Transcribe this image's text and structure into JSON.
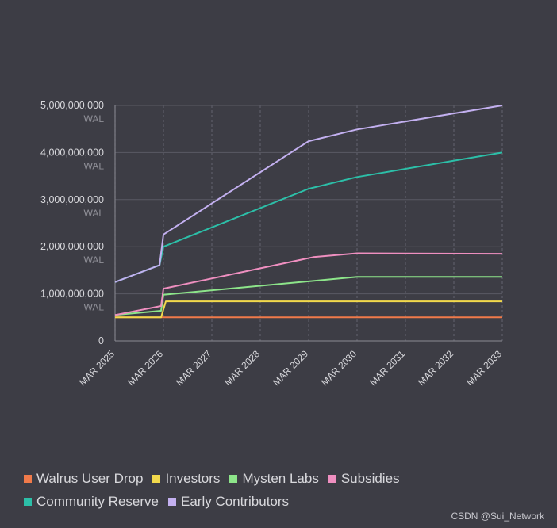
{
  "chart_data": {
    "type": "line",
    "title": "",
    "xlabel": "",
    "ylabel": "WAL",
    "ylim": [
      0,
      5000000000
    ],
    "yticks": [
      {
        "value": 0,
        "label": "0",
        "unit": ""
      },
      {
        "value": 1000000000,
        "label": "1,000,000,000",
        "unit": "WAL"
      },
      {
        "value": 2000000000,
        "label": "2,000,000,000",
        "unit": "WAL"
      },
      {
        "value": 3000000000,
        "label": "3,000,000,000",
        "unit": "WAL"
      },
      {
        "value": 4000000000,
        "label": "4,000,000,000",
        "unit": "WAL"
      },
      {
        "value": 5000000000,
        "label": "5,000,000,000",
        "unit": "WAL"
      }
    ],
    "xlim": [
      2025,
      2033
    ],
    "xticks": [
      {
        "value": 2025,
        "label": "MAR 2025"
      },
      {
        "value": 2026,
        "label": "MAR 2026"
      },
      {
        "value": 2027,
        "label": "MAR 2027"
      },
      {
        "value": 2028,
        "label": "MAR 2028"
      },
      {
        "value": 2029,
        "label": "MAR 2029"
      },
      {
        "value": 2030,
        "label": "MAR 2030"
      },
      {
        "value": 2031,
        "label": "MAR 2031"
      },
      {
        "value": 2032,
        "label": "MAR 2032"
      },
      {
        "value": 2033,
        "label": "MAR 2033"
      }
    ],
    "series": [
      {
        "name": "Walrus User Drop",
        "color": "#f07a4a",
        "x": [
          2025,
          2033
        ],
        "y": [
          500000000,
          500000000
        ]
      },
      {
        "name": "Investors",
        "color": "#f2d94c",
        "x": [
          2025,
          2025.95,
          2026.05,
          2033
        ],
        "y": [
          500000000,
          500000000,
          840000000,
          840000000
        ]
      },
      {
        "name": "Mysten Labs",
        "color": "#8de58a",
        "x": [
          2025,
          2025.95,
          2026.0,
          2030.0,
          2033
        ],
        "y": [
          550000000,
          640000000,
          980000000,
          1360000000,
          1360000000
        ]
      },
      {
        "name": "Subsidies",
        "color": "#ef8fc0",
        "x": [
          2025,
          2025.95,
          2026.0,
          2029.1,
          2030.0,
          2033
        ],
        "y": [
          550000000,
          740000000,
          1110000000,
          1780000000,
          1860000000,
          1850000000
        ]
      },
      {
        "name": "Community Reserve",
        "color": "#2cbfa8",
        "x": [
          2025,
          2025.92,
          2026.0,
          2029.0,
          2030.0,
          2033
        ],
        "y": [
          1250000000,
          1610000000,
          2000000000,
          3230000000,
          3480000000,
          4000000000
        ]
      },
      {
        "name": "Early Contributors",
        "color": "#c3b0f0",
        "x": [
          2025,
          2025.92,
          2026.0,
          2029.0,
          2030.0,
          2033
        ],
        "y": [
          1250000000,
          1610000000,
          2260000000,
          4240000000,
          4490000000,
          5000000000
        ]
      }
    ]
  },
  "legend": {
    "rows": [
      [
        {
          "label": "Walrus User Drop",
          "color": "#f07a4a"
        },
        {
          "label": "Investors",
          "color": "#f2d94c"
        },
        {
          "label": "Mysten Labs",
          "color": "#8de58a"
        },
        {
          "label": "Subsidies",
          "color": "#ef8fc0"
        }
      ],
      [
        {
          "label": "Community Reserve",
          "color": "#2cbfa8"
        },
        {
          "label": "Early Contributors",
          "color": "#c3b0f0"
        }
      ]
    ]
  },
  "watermark": "CSDN @Sui_Network"
}
